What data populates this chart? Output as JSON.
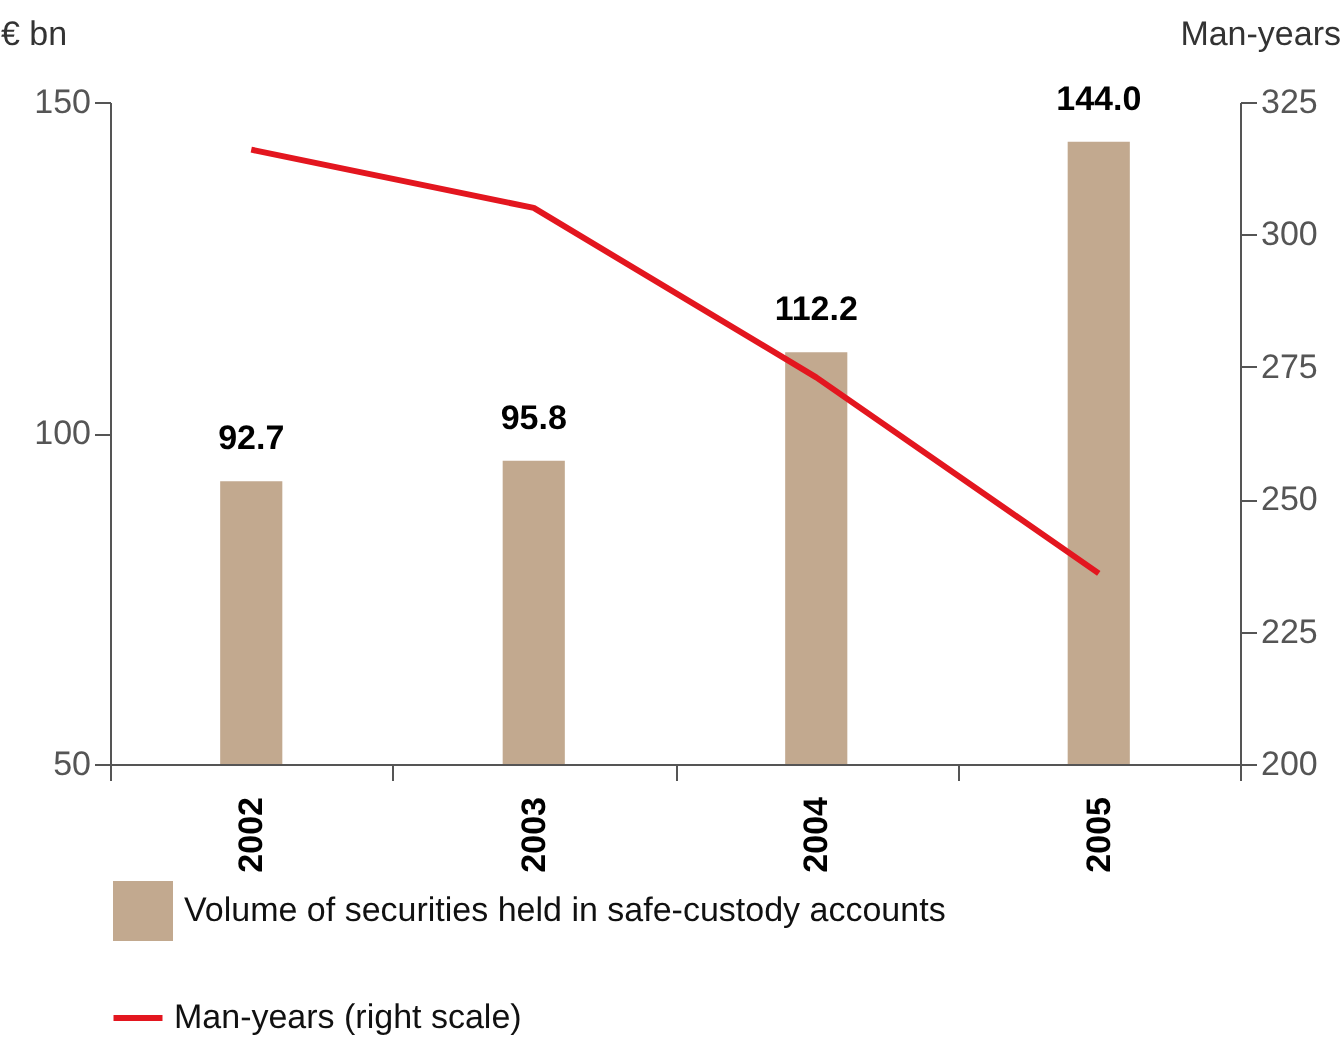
{
  "chart_data": {
    "type": "bar",
    "categories": [
      "2002",
      "2003",
      "2004",
      "2005"
    ],
    "ylabel": "€ bn",
    "y2label": "Man-years",
    "ylim": [
      50,
      150
    ],
    "yticks": [
      50,
      100,
      150
    ],
    "y2lim": [
      200,
      325
    ],
    "y2ticks": [
      200,
      225,
      250,
      275,
      300,
      325
    ],
    "legend": "bottom",
    "grid": false,
    "series": [
      {
        "name": "Volume of securities held in safe-custody accounts",
        "color": "#c2a98f",
        "values": [
          92.7,
          95.8,
          112.2,
          144.0
        ],
        "value_labels": [
          "92.7",
          "95.8",
          "112.2",
          "144.0"
        ]
      },
      {
        "type": "line",
        "axis": "y2",
        "name": "Man-years (right scale)",
        "color": "#e3161f",
        "values": [
          316,
          305,
          273,
          236
        ]
      }
    ]
  }
}
